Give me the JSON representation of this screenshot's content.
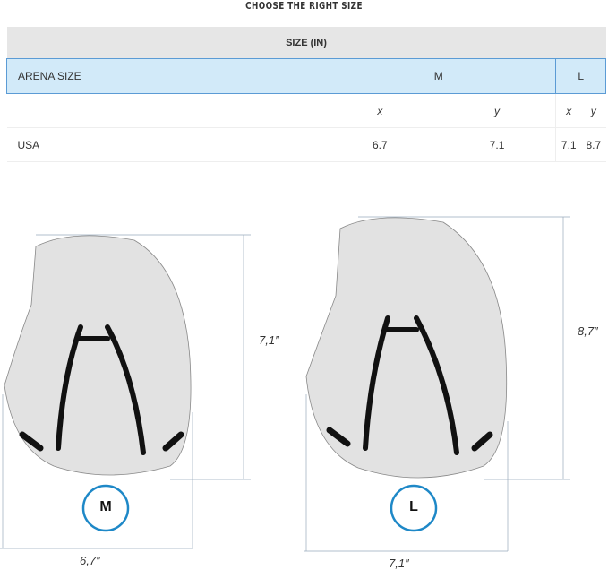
{
  "title": "CHOOSE THE RIGHT SIZE",
  "table": {
    "header": "SIZE (IN)",
    "columns": [
      "ARENA SIZE",
      "M",
      "L"
    ],
    "subheaders": [
      "x",
      "y",
      "x",
      "y"
    ],
    "rows": [
      {
        "label": "USA",
        "values": [
          "6.7",
          "7.1",
          "7.1",
          "8.7"
        ]
      }
    ]
  },
  "diagrams": [
    {
      "size": "M",
      "width_label": "6,7″",
      "height_label": "7,1″"
    },
    {
      "size": "L",
      "width_label": "7,1″",
      "height_label": "8,7″"
    }
  ],
  "colors": {
    "header_bg": "#e6e6e6",
    "size_row_bg": "#d2eaf9",
    "circle_border": "#1e88c7"
  }
}
